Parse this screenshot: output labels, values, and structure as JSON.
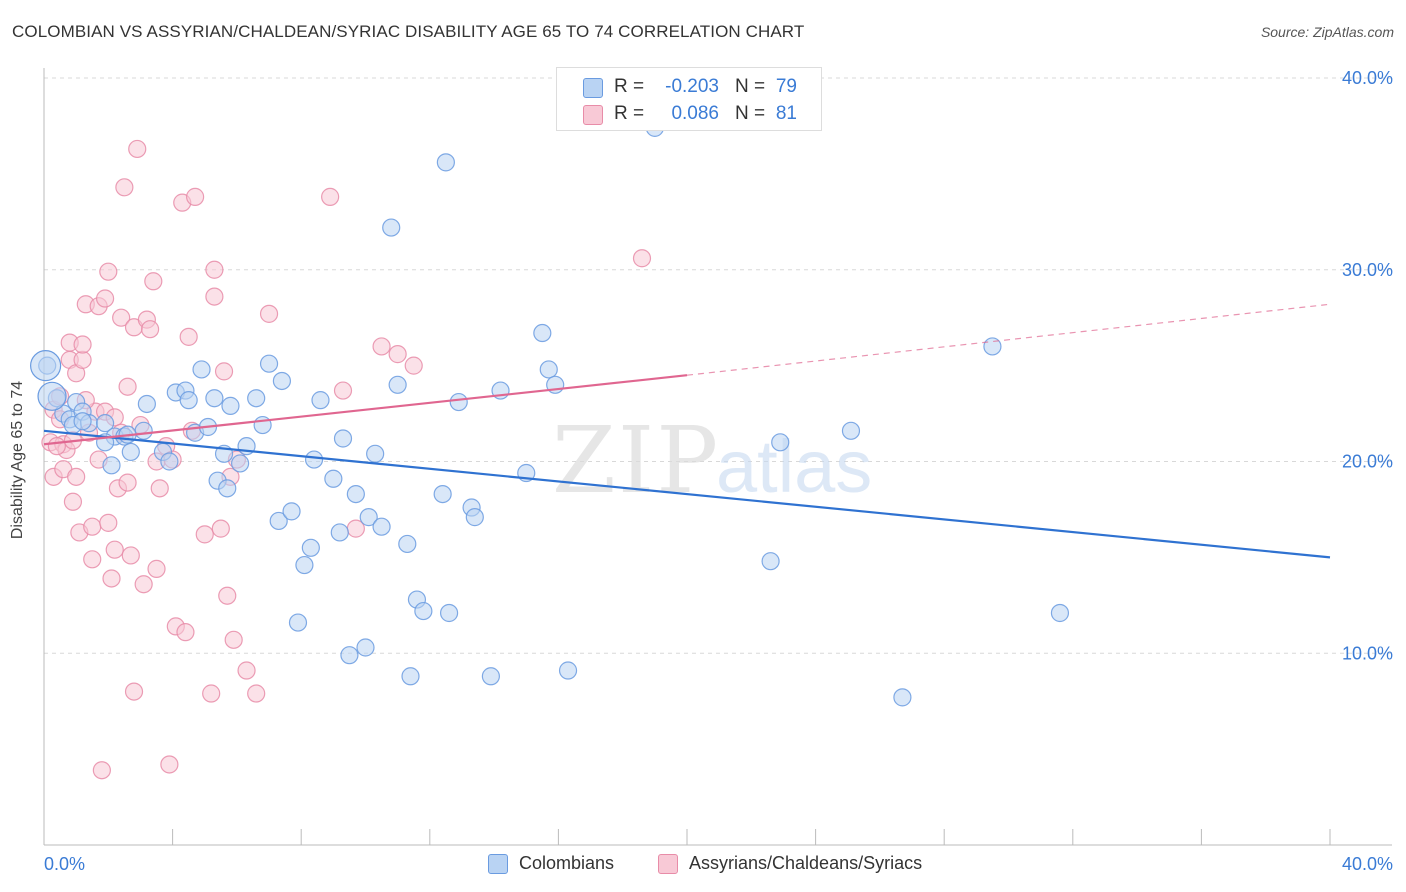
{
  "title": "COLOMBIAN VS ASSYRIAN/CHALDEAN/SYRIAC DISABILITY AGE 65 TO 74 CORRELATION CHART",
  "source": "Source: ZipAtlas.com",
  "watermark": {
    "zip": "ZIP",
    "atlas": "atlas"
  },
  "stats": [
    {
      "r_label": "R =",
      "r_value": "-0.203",
      "n_label": "N =",
      "n_value": "79",
      "color": "#6a9be0",
      "fill": "#b9d3f3"
    },
    {
      "r_label": "R =",
      "r_value": "0.086",
      "n_label": "N =",
      "n_value": "81",
      "color": "#e88ca8",
      "fill": "#f8c9d6"
    }
  ],
  "legend": [
    {
      "label": "Colombians",
      "color": "#6a9be0",
      "fill": "#b9d3f3"
    },
    {
      "label": "Assyrians/Chaldeans/Syriacs",
      "color": "#e88ca8",
      "fill": "#f8c9d6"
    }
  ],
  "colors": {
    "blue_line": "#2f72d1",
    "pink_line": "#e06690",
    "value_text": "#3a7bd5",
    "grid": "#d8d8d8"
  },
  "chart_data": {
    "type": "scatter",
    "title": "COLOMBIAN VS ASSYRIAN/CHALDEAN/SYRIAC DISABILITY AGE 65 TO 74 CORRELATION CHART",
    "xlabel": "",
    "ylabel": "Disability Age 65 to 74",
    "xlim": [
      0,
      40
    ],
    "ylim": [
      0,
      40
    ],
    "x_tick_labels": [
      "0.0%",
      "40.0%"
    ],
    "y_ticks": [
      10,
      20,
      30,
      40
    ],
    "y_tick_labels": [
      "10.0%",
      "20.0%",
      "30.0%",
      "40.0%"
    ],
    "grid": true,
    "legend_position": "bottom",
    "series": [
      {
        "name": "Colombians",
        "color": "#6a9be0",
        "fill": "#b9d3f3",
        "points": [
          [
            0.1,
            25.0
          ],
          [
            0.4,
            23.3
          ],
          [
            0.6,
            22.5
          ],
          [
            0.8,
            22.2
          ],
          [
            0.9,
            21.9
          ],
          [
            1.0,
            23.1
          ],
          [
            1.2,
            22.6
          ],
          [
            1.4,
            22.0
          ],
          [
            1.9,
            22.0
          ],
          [
            2.2,
            21.3
          ],
          [
            1.9,
            21.0
          ],
          [
            2.1,
            19.8
          ],
          [
            2.5,
            21.3
          ],
          [
            2.7,
            20.5
          ],
          [
            3.1,
            21.6
          ],
          [
            3.2,
            23.0
          ],
          [
            3.7,
            20.5
          ],
          [
            3.9,
            20.0
          ],
          [
            4.1,
            23.6
          ],
          [
            4.4,
            23.7
          ],
          [
            4.5,
            23.2
          ],
          [
            4.7,
            21.5
          ],
          [
            4.9,
            24.8
          ],
          [
            5.1,
            21.8
          ],
          [
            5.3,
            23.3
          ],
          [
            5.4,
            19.0
          ],
          [
            5.6,
            20.4
          ],
          [
            5.7,
            18.6
          ],
          [
            5.8,
            22.9
          ],
          [
            6.1,
            19.9
          ],
          [
            6.3,
            20.8
          ],
          [
            6.6,
            23.3
          ],
          [
            6.8,
            21.9
          ],
          [
            7.0,
            25.1
          ],
          [
            7.4,
            24.2
          ],
          [
            7.3,
            16.9
          ],
          [
            7.7,
            17.4
          ],
          [
            7.9,
            11.6
          ],
          [
            8.1,
            14.6
          ],
          [
            8.3,
            15.5
          ],
          [
            8.4,
            20.1
          ],
          [
            8.6,
            23.2
          ],
          [
            9.0,
            19.1
          ],
          [
            9.2,
            16.3
          ],
          [
            9.3,
            21.2
          ],
          [
            9.5,
            9.9
          ],
          [
            9.7,
            18.3
          ],
          [
            10.0,
            10.3
          ],
          [
            10.1,
            17.1
          ],
          [
            10.3,
            20.4
          ],
          [
            10.5,
            16.6
          ],
          [
            10.8,
            32.2
          ],
          [
            11.0,
            24.0
          ],
          [
            11.3,
            15.7
          ],
          [
            11.4,
            8.8
          ],
          [
            11.6,
            12.8
          ],
          [
            11.8,
            12.2
          ],
          [
            12.4,
            18.3
          ],
          [
            12.5,
            35.6
          ],
          [
            12.6,
            12.1
          ],
          [
            12.9,
            23.1
          ],
          [
            13.3,
            17.6
          ],
          [
            13.4,
            17.1
          ],
          [
            13.9,
            8.8
          ],
          [
            14.2,
            23.7
          ],
          [
            15.0,
            19.4
          ],
          [
            15.5,
            26.7
          ],
          [
            15.7,
            24.8
          ],
          [
            15.9,
            24.0
          ],
          [
            16.3,
            9.1
          ],
          [
            19.0,
            37.4
          ],
          [
            22.6,
            14.8
          ],
          [
            22.9,
            21.0
          ],
          [
            25.1,
            21.6
          ],
          [
            26.7,
            7.7
          ],
          [
            29.5,
            26.0
          ],
          [
            31.6,
            12.1
          ],
          [
            1.2,
            22.1
          ],
          [
            2.6,
            21.4
          ]
        ],
        "trend": {
          "x": [
            0,
            40
          ],
          "y": [
            21.6,
            15.0
          ]
        }
      },
      {
        "name": "Assyrians/Chaldeans/Syriacs",
        "color": "#e88ca8",
        "fill": "#f8c9d6",
        "points": [
          [
            0.2,
            21.0
          ],
          [
            0.3,
            22.7
          ],
          [
            0.3,
            19.2
          ],
          [
            0.5,
            23.4
          ],
          [
            0.5,
            22.2
          ],
          [
            0.6,
            20.9
          ],
          [
            0.6,
            19.6
          ],
          [
            0.7,
            20.6
          ],
          [
            0.8,
            26.2
          ],
          [
            0.8,
            25.3
          ],
          [
            0.9,
            17.9
          ],
          [
            0.9,
            21.1
          ],
          [
            1.0,
            19.2
          ],
          [
            1.0,
            24.6
          ],
          [
            1.1,
            16.3
          ],
          [
            1.2,
            25.3
          ],
          [
            1.2,
            26.1
          ],
          [
            1.3,
            28.2
          ],
          [
            1.4,
            21.5
          ],
          [
            1.5,
            16.6
          ],
          [
            1.5,
            14.9
          ],
          [
            1.6,
            22.6
          ],
          [
            1.7,
            28.1
          ],
          [
            1.7,
            20.1
          ],
          [
            1.8,
            3.9
          ],
          [
            1.9,
            22.6
          ],
          [
            1.9,
            28.5
          ],
          [
            2.0,
            29.9
          ],
          [
            2.1,
            13.9
          ],
          [
            2.2,
            22.3
          ],
          [
            2.2,
            15.4
          ],
          [
            2.3,
            18.6
          ],
          [
            2.4,
            27.5
          ],
          [
            2.4,
            21.5
          ],
          [
            2.5,
            34.3
          ],
          [
            2.6,
            23.9
          ],
          [
            2.6,
            18.9
          ],
          [
            2.7,
            15.1
          ],
          [
            2.8,
            27.0
          ],
          [
            2.8,
            8.0
          ],
          [
            2.9,
            36.3
          ],
          [
            3.0,
            21.9
          ],
          [
            3.1,
            13.6
          ],
          [
            3.2,
            27.4
          ],
          [
            3.3,
            26.9
          ],
          [
            3.4,
            29.4
          ],
          [
            3.5,
            20.0
          ],
          [
            3.5,
            14.4
          ],
          [
            3.6,
            18.6
          ],
          [
            3.8,
            20.8
          ],
          [
            3.9,
            4.2
          ],
          [
            4.0,
            20.1
          ],
          [
            4.1,
            11.4
          ],
          [
            4.3,
            33.5
          ],
          [
            4.4,
            11.1
          ],
          [
            4.5,
            26.5
          ],
          [
            4.6,
            21.6
          ],
          [
            4.7,
            33.8
          ],
          [
            5.0,
            16.2
          ],
          [
            5.2,
            7.9
          ],
          [
            5.3,
            30.0
          ],
          [
            5.3,
            28.6
          ],
          [
            5.5,
            16.5
          ],
          [
            5.6,
            24.7
          ],
          [
            5.7,
            13.0
          ],
          [
            5.8,
            19.2
          ],
          [
            5.9,
            10.7
          ],
          [
            6.0,
            20.1
          ],
          [
            6.3,
            9.1
          ],
          [
            6.6,
            7.9
          ],
          [
            7.0,
            27.7
          ],
          [
            8.9,
            33.8
          ],
          [
            9.3,
            23.7
          ],
          [
            9.7,
            16.5
          ],
          [
            10.5,
            26.0
          ],
          [
            11.0,
            25.6
          ],
          [
            11.5,
            25.0
          ],
          [
            18.6,
            30.6
          ],
          [
            0.4,
            20.8
          ],
          [
            1.3,
            23.2
          ],
          [
            2.0,
            16.8
          ]
        ],
        "trend": {
          "x": [
            0,
            20
          ],
          "y": [
            20.9,
            24.5
          ]
        },
        "trend_extension": {
          "x": [
            20,
            40
          ],
          "y": [
            24.5,
            28.2
          ]
        }
      }
    ]
  }
}
